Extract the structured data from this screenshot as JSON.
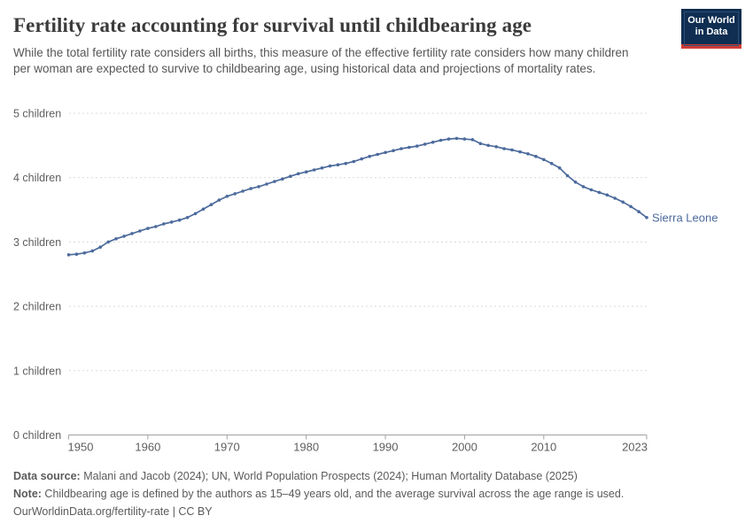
{
  "header": {
    "title": "Fertility rate accounting for survival until childbearing age",
    "subtitle": "While the total fertility rate considers all births, this measure of the effective fertility rate considers how many children per woman are expected to survive to childbearing age, using historical data and projections of mortality rates.",
    "logo": {
      "line1": "Our World",
      "line2": "in Data"
    }
  },
  "chart_data": {
    "type": "line",
    "title": "Fertility rate accounting for survival until childbearing age",
    "series": [
      {
        "name": "Sierra Leone",
        "color": "#4c6a9c",
        "x": [
          1950,
          1951,
          1952,
          1953,
          1954,
          1955,
          1956,
          1957,
          1958,
          1959,
          1960,
          1961,
          1962,
          1963,
          1964,
          1965,
          1966,
          1967,
          1968,
          1969,
          1970,
          1971,
          1972,
          1973,
          1974,
          1975,
          1976,
          1977,
          1978,
          1979,
          1980,
          1981,
          1982,
          1983,
          1984,
          1985,
          1986,
          1987,
          1988,
          1989,
          1990,
          1991,
          1992,
          1993,
          1994,
          1995,
          1996,
          1997,
          1998,
          1999,
          2000,
          2001,
          2002,
          2003,
          2004,
          2005,
          2006,
          2007,
          2008,
          2009,
          2010,
          2011,
          2012,
          2013,
          2014,
          2015,
          2016,
          2017,
          2018,
          2019,
          2020,
          2021,
          2022,
          2023
        ],
        "values": [
          2.8,
          2.81,
          2.83,
          2.86,
          2.92,
          3.0,
          3.05,
          3.09,
          3.13,
          3.17,
          3.21,
          3.24,
          3.28,
          3.31,
          3.34,
          3.38,
          3.44,
          3.51,
          3.58,
          3.65,
          3.71,
          3.75,
          3.79,
          3.83,
          3.86,
          3.9,
          3.94,
          3.98,
          4.02,
          4.06,
          4.09,
          4.12,
          4.15,
          4.18,
          4.2,
          4.22,
          4.25,
          4.29,
          4.33,
          4.36,
          4.39,
          4.42,
          4.45,
          4.47,
          4.49,
          4.52,
          4.55,
          4.58,
          4.6,
          4.61,
          4.6,
          4.59,
          4.53,
          4.5,
          4.48,
          4.45,
          4.43,
          4.4,
          4.37,
          4.33,
          4.28,
          4.22,
          4.15,
          4.03,
          3.93,
          3.86,
          3.81,
          3.77,
          3.73,
          3.68,
          3.62,
          3.55,
          3.47,
          3.38
        ]
      }
    ],
    "xlim": [
      1950,
      2023
    ],
    "ylim": [
      0,
      5
    ],
    "xticks": [
      1950,
      1960,
      1970,
      1980,
      1990,
      2000,
      2010,
      2023
    ],
    "yticks": [
      {
        "value": 0,
        "label": "0 children"
      },
      {
        "value": 1,
        "label": "1 children"
      },
      {
        "value": 2,
        "label": "2 children"
      },
      {
        "value": 3,
        "label": "3 children"
      },
      {
        "value": 4,
        "label": "4 children"
      },
      {
        "value": 5,
        "label": "5 children"
      }
    ],
    "grid": "horizontal-dashed",
    "legend_position": "end-of-line-label",
    "end_label": "Sierra Leone"
  },
  "footer": {
    "datasource_label": "Data source:",
    "datasource_text": " Malani and Jacob (2024); UN, World Population Prospects (2024); Human Mortality Database (2025)",
    "note_label": "Note:",
    "note_text": " Childbearing age is defined by the authors as 15–49 years old, and the average survival across the age range is used.",
    "url_line": "OurWorldinData.org/fertility-rate | CC BY"
  },
  "colors": {
    "line": "#4c6a9c",
    "grid": "#d8d8d8",
    "axis": "#a1a1a1",
    "tick_label": "#5e5e5e",
    "title": "#3b3b3b",
    "subtitle": "#565656",
    "logo_bg": "#0f2e51",
    "logo_red": "#cf3d34"
  }
}
